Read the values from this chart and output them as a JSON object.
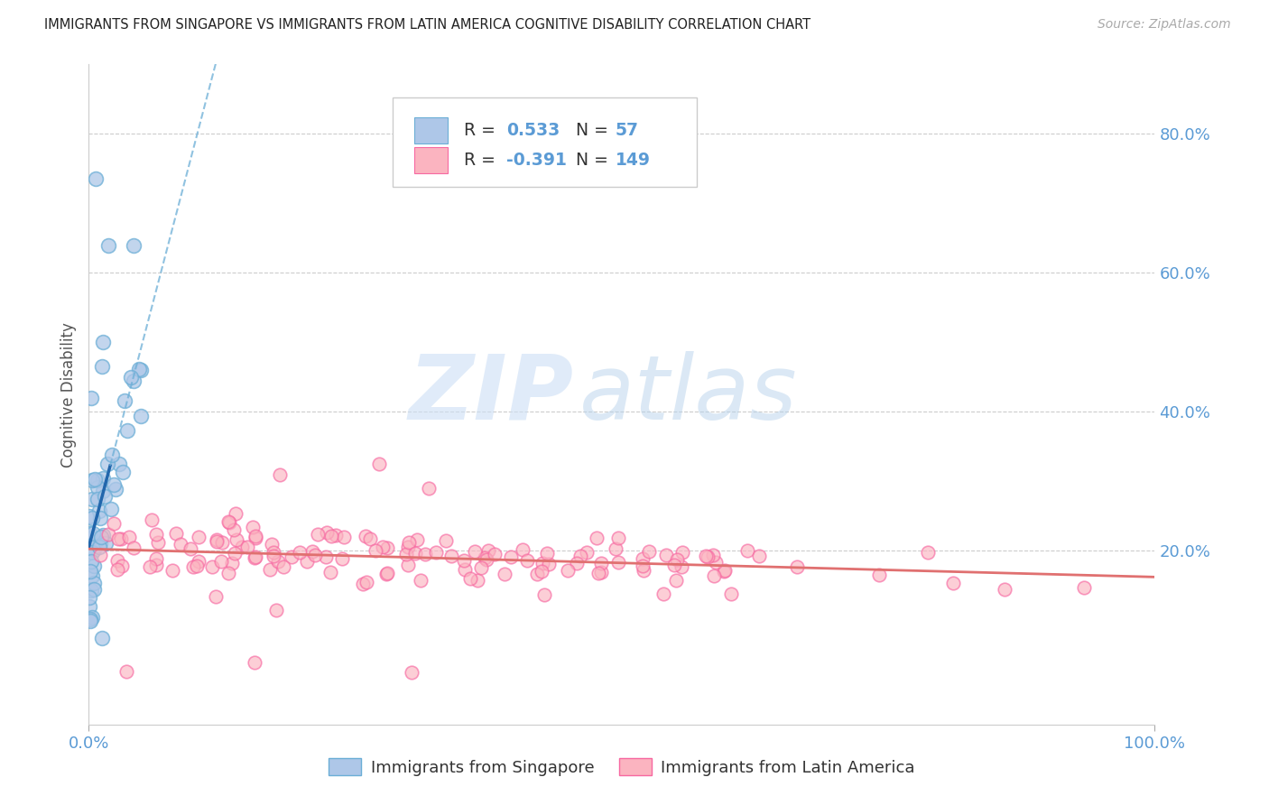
{
  "title": "IMMIGRANTS FROM SINGAPORE VS IMMIGRANTS FROM LATIN AMERICA COGNITIVE DISABILITY CORRELATION CHART",
  "source": "Source: ZipAtlas.com",
  "ylabel": "Cognitive Disability",
  "right_ytick_vals": [
    0.2,
    0.4,
    0.6,
    0.8
  ],
  "right_ytick_labels": [
    "20.0%",
    "40.0%",
    "60.0%",
    "80.0%"
  ],
  "sg_scatter_color": "#aec7e8",
  "sg_scatter_edge": "#6baed6",
  "la_scatter_color": "#fbb4c0",
  "la_scatter_edge": "#f768a1",
  "trend_sg_solid_color": "#2166ac",
  "trend_sg_dash_color": "#6baed6",
  "trend_la_color": "#e07070",
  "background": "#ffffff",
  "grid_color": "#cccccc",
  "axis_tick_color": "#5b9bd5",
  "legend_text_color": "#5b9bd5",
  "legend_r_eq": "R = ",
  "legend_n_eq": "N = ",
  "legend_r1": "0.533",
  "legend_n1": "57",
  "legend_r2": "-0.391",
  "legend_n2": "149",
  "legend_sg_fc": "#aec7e8",
  "legend_sg_ec": "#6baed6",
  "legend_la_fc": "#fbb4c0",
  "legend_la_ec": "#f768a1",
  "bottom_legend_sg": "Immigrants from Singapore",
  "bottom_legend_la": "Immigrants from Latin America",
  "xlim": [
    0.0,
    1.0
  ],
  "ylim": [
    -0.05,
    0.9
  ],
  "sg_seed": 42,
  "la_seed": 7,
  "n_sg": 57,
  "n_la": 149
}
